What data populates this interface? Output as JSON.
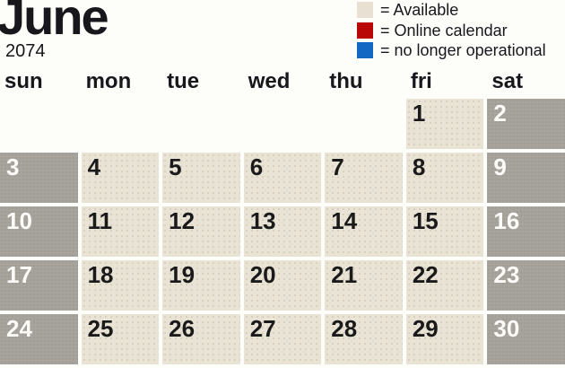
{
  "title": {
    "month": "June",
    "year": "2074"
  },
  "colors": {
    "page_bg": "#fdfdfa",
    "available_bg": "#e9e3d6",
    "weekend_bg": "#a7a39d",
    "legend_available": "#e7e0d3",
    "legend_online_calendar": "#b90707",
    "legend_no_longer_operational": "#1268c2",
    "text_dark": "#17171c",
    "text_light": "#fcfbf7"
  },
  "legend": {
    "items": [
      {
        "icon": "available-swatch",
        "color": "#e7e0d3",
        "label": "= Available"
      },
      {
        "icon": "online-calendar-swatch",
        "color": "#b90707",
        "label": "= Online calendar"
      },
      {
        "icon": "no-longer-operational-swatch",
        "color": "#1268c2",
        "label": "= no longer operational"
      }
    ]
  },
  "weekday_headers": [
    "sun",
    "mon",
    "tue",
    "wed",
    "thu",
    "fri",
    "sat"
  ],
  "weeks": [
    [
      null,
      null,
      null,
      null,
      null,
      {
        "day": "1",
        "state": "available"
      },
      {
        "day": "2",
        "state": "weekend"
      }
    ],
    [
      {
        "day": "3",
        "state": "weekend"
      },
      {
        "day": "4",
        "state": "available"
      },
      {
        "day": "5",
        "state": "available"
      },
      {
        "day": "6",
        "state": "available"
      },
      {
        "day": "7",
        "state": "available"
      },
      {
        "day": "8",
        "state": "available"
      },
      {
        "day": "9",
        "state": "weekend"
      }
    ],
    [
      {
        "day": "10",
        "state": "weekend"
      },
      {
        "day": "11",
        "state": "available"
      },
      {
        "day": "12",
        "state": "available"
      },
      {
        "day": "13",
        "state": "available"
      },
      {
        "day": "14",
        "state": "available"
      },
      {
        "day": "15",
        "state": "available"
      },
      {
        "day": "16",
        "state": "weekend"
      }
    ],
    [
      {
        "day": "17",
        "state": "weekend"
      },
      {
        "day": "18",
        "state": "available"
      },
      {
        "day": "19",
        "state": "available"
      },
      {
        "day": "20",
        "state": "available"
      },
      {
        "day": "21",
        "state": "available"
      },
      {
        "day": "22",
        "state": "available"
      },
      {
        "day": "23",
        "state": "weekend"
      }
    ],
    [
      {
        "day": "24",
        "state": "weekend"
      },
      {
        "day": "25",
        "state": "available"
      },
      {
        "day": "26",
        "state": "available"
      },
      {
        "day": "27",
        "state": "available"
      },
      {
        "day": "28",
        "state": "available"
      },
      {
        "day": "29",
        "state": "available"
      },
      {
        "day": "30",
        "state": "weekend"
      }
    ]
  ]
}
